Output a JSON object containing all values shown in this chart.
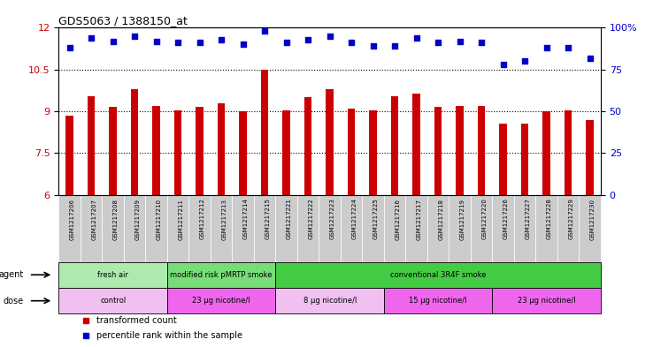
{
  "title": "GDS5063 / 1388150_at",
  "samples": [
    "GSM1217206",
    "GSM1217207",
    "GSM1217208",
    "GSM1217209",
    "GSM1217210",
    "GSM1217211",
    "GSM1217212",
    "GSM1217213",
    "GSM1217214",
    "GSM1217215",
    "GSM1217221",
    "GSM1217222",
    "GSM1217223",
    "GSM1217224",
    "GSM1217225",
    "GSM1217216",
    "GSM1217217",
    "GSM1217218",
    "GSM1217219",
    "GSM1217220",
    "GSM1217226",
    "GSM1217227",
    "GSM1217228",
    "GSM1217229",
    "GSM1217230"
  ],
  "transformed_count": [
    8.85,
    9.55,
    9.15,
    9.8,
    9.2,
    9.05,
    9.15,
    9.3,
    9.0,
    10.5,
    9.05,
    9.5,
    9.8,
    9.1,
    9.05,
    9.55,
    9.65,
    9.15,
    9.2,
    9.2,
    8.55,
    8.55,
    9.0,
    9.05,
    8.7
  ],
  "percentile_rank": [
    88,
    94,
    92,
    95,
    92,
    91,
    91,
    93,
    90,
    98,
    91,
    93,
    95,
    91,
    89,
    89,
    94,
    91,
    92,
    91,
    78,
    80,
    88,
    88,
    82
  ],
  "ylim_left": [
    6,
    12
  ],
  "ylim_right": [
    0,
    100
  ],
  "yticks_left": [
    6,
    7.5,
    9,
    10.5,
    12
  ],
  "yticks_right": [
    0,
    25,
    50,
    75,
    100
  ],
  "ytick_labels_left": [
    "6",
    "7.5",
    "9",
    "10.5",
    "12"
  ],
  "ytick_labels_right": [
    "0",
    "25",
    "50",
    "75",
    "100%"
  ],
  "bar_color": "#cc0000",
  "dot_color": "#0000cc",
  "agent_groups": [
    {
      "label": "fresh air",
      "start": 0,
      "end": 5,
      "color": "#aeeaae"
    },
    {
      "label": "modified risk pMRTP smoke",
      "start": 5,
      "end": 10,
      "color": "#77dd77"
    },
    {
      "label": "conventional 3R4F smoke",
      "start": 10,
      "end": 25,
      "color": "#44cc44"
    }
  ],
  "dose_groups": [
    {
      "label": "control",
      "start": 0,
      "end": 5,
      "color": "#f0c0f0"
    },
    {
      "label": "23 μg nicotine/l",
      "start": 5,
      "end": 10,
      "color": "#ee66ee"
    },
    {
      "label": "8 μg nicotine/l",
      "start": 10,
      "end": 15,
      "color": "#f0c0f0"
    },
    {
      "label": "15 μg nicotine/l",
      "start": 15,
      "end": 20,
      "color": "#ee66ee"
    },
    {
      "label": "23 μg nicotine/l",
      "start": 20,
      "end": 25,
      "color": "#ee66ee"
    }
  ],
  "legend_items": [
    {
      "label": "transformed count",
      "color": "#cc0000",
      "marker": "s"
    },
    {
      "label": "percentile rank within the sample",
      "color": "#0000cc",
      "marker": "s"
    }
  ],
  "dotted_lines": [
    7.5,
    9.0,
    10.5
  ],
  "sample_label_bg": "#cccccc",
  "background_color": "#ffffff"
}
